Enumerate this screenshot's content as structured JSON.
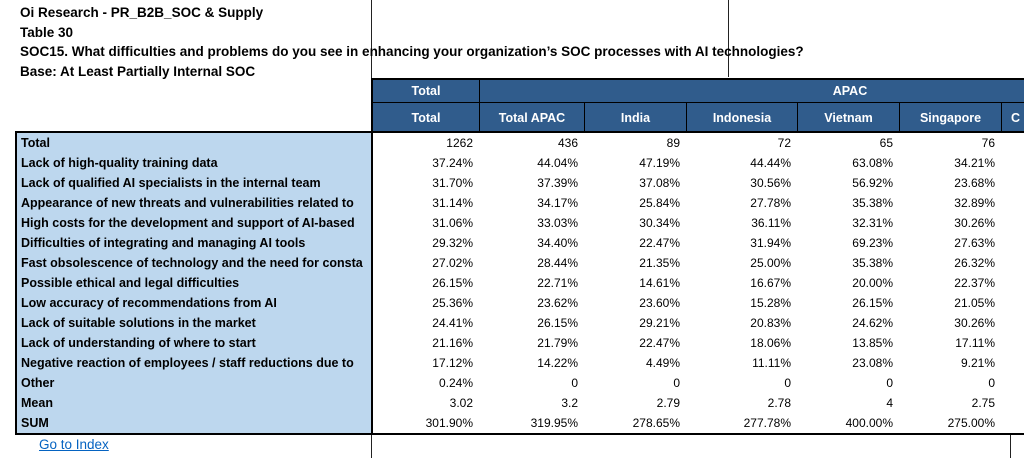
{
  "meta": {
    "line1": "Oi Research - PR_B2B_SOC & Supply",
    "line2": "Table 30",
    "line3": "SOC15. What difficulties and problems do you see in enhancing your organization’s SOC processes with AI technologies?",
    "line4": "Base: At Least Partially Internal SOC"
  },
  "table": {
    "group_header": {
      "total": "Total",
      "apac": "APAC"
    },
    "columns": [
      "Total",
      "Total APAC",
      "India",
      "Indonesia",
      "Vietnam",
      "Singapore",
      "C"
    ],
    "rows": [
      {
        "label": "Total",
        "values": [
          "1262",
          "436",
          "89",
          "72",
          "65",
          "76",
          ""
        ]
      },
      {
        "label": "Lack of high-quality training data",
        "values": [
          "37.24%",
          "44.04%",
          "47.19%",
          "44.44%",
          "63.08%",
          "34.21%",
          ""
        ]
      },
      {
        "label": "Lack of qualified AI specialists in the internal team",
        "values": [
          "31.70%",
          "37.39%",
          "37.08%",
          "30.56%",
          "56.92%",
          "23.68%",
          ""
        ]
      },
      {
        "label": "Appearance of new threats and vulnerabilities related to",
        "values": [
          "31.14%",
          "34.17%",
          "25.84%",
          "27.78%",
          "35.38%",
          "32.89%",
          ""
        ]
      },
      {
        "label": "High costs for the development and support of AI-based",
        "values": [
          "31.06%",
          "33.03%",
          "30.34%",
          "36.11%",
          "32.31%",
          "30.26%",
          ""
        ]
      },
      {
        "label": "Difficulties of integrating and managing AI tools",
        "values": [
          "29.32%",
          "34.40%",
          "22.47%",
          "31.94%",
          "69.23%",
          "27.63%",
          ""
        ]
      },
      {
        "label": "Fast obsolescence of technology and the need for consta",
        "values": [
          "27.02%",
          "28.44%",
          "21.35%",
          "25.00%",
          "35.38%",
          "26.32%",
          ""
        ]
      },
      {
        "label": "Possible ethical and legal difficulties",
        "values": [
          "26.15%",
          "22.71%",
          "14.61%",
          "16.67%",
          "20.00%",
          "22.37%",
          ""
        ]
      },
      {
        "label": "Low accuracy of recommendations from AI",
        "values": [
          "25.36%",
          "23.62%",
          "23.60%",
          "15.28%",
          "26.15%",
          "21.05%",
          ""
        ]
      },
      {
        "label": "Lack of suitable solutions in the market",
        "values": [
          "24.41%",
          "26.15%",
          "29.21%",
          "20.83%",
          "24.62%",
          "30.26%",
          ""
        ]
      },
      {
        "label": "Lack of understanding of where to start",
        "values": [
          "21.16%",
          "21.79%",
          "22.47%",
          "18.06%",
          "13.85%",
          "17.11%",
          ""
        ]
      },
      {
        "label": "Negative reaction of employees / staff reductions due to",
        "values": [
          "17.12%",
          "14.22%",
          "4.49%",
          "11.11%",
          "23.08%",
          "9.21%",
          ""
        ]
      },
      {
        "label": "Other",
        "values": [
          "0.24%",
          "0",
          "0",
          "0",
          "0",
          "0",
          ""
        ]
      },
      {
        "label": "Mean",
        "values": [
          "3.02",
          "3.2",
          "2.79",
          "2.78",
          "4",
          "2.75",
          ""
        ]
      },
      {
        "label": "SUM",
        "values": [
          "301.90%",
          "319.95%",
          "278.65%",
          "277.78%",
          "400.00%",
          "275.00%",
          ""
        ]
      }
    ]
  },
  "link": {
    "go_to_index": "Go to Index"
  },
  "colors": {
    "header_bg": "#305C8C",
    "label_bg": "#BDD7EE",
    "link": "#0563C1",
    "border": "#000000"
  }
}
